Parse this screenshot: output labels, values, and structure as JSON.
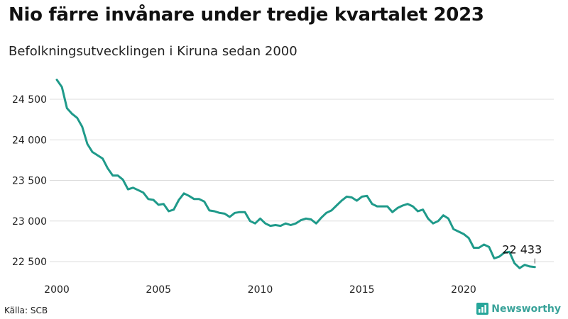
{
  "header": {
    "title": "Nio färre invånare under tredje kvartalet 2023",
    "subtitle": "Befolkningsutvecklingen i Kiruna sedan 2000"
  },
  "footer": {
    "source": "Källa: SCB",
    "brand": "Newsworthy"
  },
  "colors": {
    "line": "#1f9a8a",
    "grid": "#dddddd",
    "brand": "#3aa39a"
  },
  "icons": {
    "brand_icon": "bar-chart-icon"
  },
  "chart_data": {
    "type": "line",
    "title": "Nio färre invånare under tredje kvartalet 2023",
    "subtitle": "Befolkningsutvecklingen i Kiruna sedan 2000",
    "xlabel": "",
    "ylabel": "",
    "x_ticks": [
      2000,
      2005,
      2010,
      2015,
      2020
    ],
    "x_tick_labels": [
      "2000",
      "2005",
      "2010",
      "2015",
      "2020"
    ],
    "y_ticks": [
      22500,
      23000,
      23500,
      24000,
      24500
    ],
    "y_tick_labels": [
      "22 500",
      "23 000",
      "23 500",
      "24 000",
      "24 500"
    ],
    "xlim": [
      2000,
      2024
    ],
    "ylim": [
      22350,
      24800
    ],
    "grid": "horizontal",
    "last_value_label": "22 433",
    "series": [
      {
        "x": [
          2000.0,
          2000.25,
          2000.5,
          2000.75,
          2001.0,
          2001.25,
          2001.5,
          2001.75,
          2002.0,
          2002.25,
          2002.5,
          2002.75,
          2003.0,
          2003.25,
          2003.5,
          2003.75,
          2004.0,
          2004.25,
          2004.5,
          2004.75,
          2005.0,
          2005.25,
          2005.5,
          2005.75,
          2006.0,
          2006.25,
          2006.5,
          2006.75,
          2007.0,
          2007.25,
          2007.5,
          2007.75,
          2008.0,
          2008.25,
          2008.5,
          2008.75,
          2009.0,
          2009.25,
          2009.5,
          2009.75,
          2010.0,
          2010.25,
          2010.5,
          2010.75,
          2011.0,
          2011.25,
          2011.5,
          2011.75,
          2012.0,
          2012.25,
          2012.5,
          2012.75,
          2013.0,
          2013.25,
          2013.5,
          2013.75,
          2014.0,
          2014.25,
          2014.5,
          2014.75,
          2015.0,
          2015.25,
          2015.5,
          2015.75,
          2016.0,
          2016.25,
          2016.5,
          2016.75,
          2017.0,
          2017.25,
          2017.5,
          2017.75,
          2018.0,
          2018.25,
          2018.5,
          2018.75,
          2019.0,
          2019.25,
          2019.5,
          2019.75,
          2020.0,
          2020.25,
          2020.5,
          2020.75,
          2021.0,
          2021.25,
          2021.5,
          2021.75,
          2022.0,
          2022.25,
          2022.5,
          2022.75,
          2023.0,
          2023.25,
          2023.5
        ],
        "values": [
          24740,
          24650,
          24390,
          24320,
          24270,
          24160,
          23950,
          23850,
          23810,
          23770,
          23650,
          23560,
          23560,
          23510,
          23390,
          23410,
          23380,
          23350,
          23270,
          23260,
          23200,
          23210,
          23120,
          23140,
          23260,
          23340,
          23310,
          23270,
          23270,
          23240,
          23130,
          23120,
          23100,
          23090,
          23050,
          23100,
          23110,
          23110,
          23000,
          22970,
          23030,
          22970,
          22940,
          22950,
          22940,
          22970,
          22950,
          22970,
          23010,
          23030,
          23020,
          22970,
          23040,
          23100,
          23130,
          23190,
          23250,
          23300,
          23290,
          23250,
          23300,
          23310,
          23210,
          23180,
          23180,
          23180,
          23110,
          23160,
          23190,
          23210,
          23180,
          23120,
          23140,
          23030,
          22970,
          23000,
          23070,
          23030,
          22900,
          22870,
          22840,
          22790,
          22670,
          22670,
          22710,
          22680,
          22540,
          22560,
          22610,
          22620,
          22480,
          22420,
          22460,
          22440,
          22433
        ]
      }
    ]
  }
}
